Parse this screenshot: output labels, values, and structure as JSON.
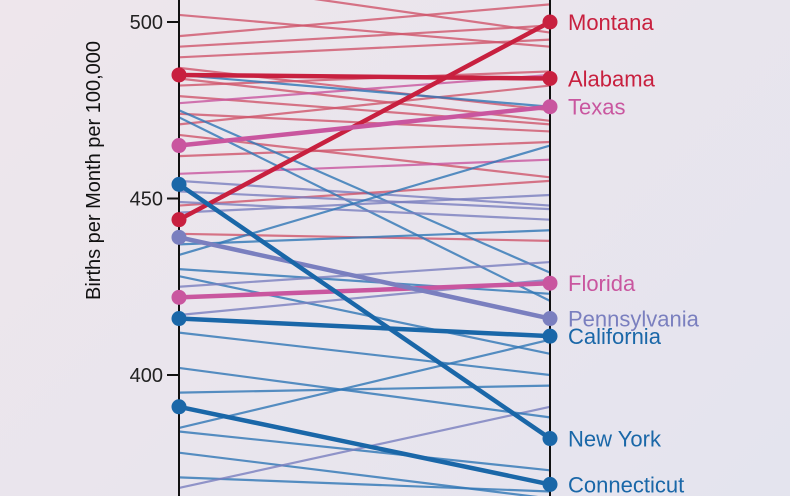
{
  "chart_data": {
    "type": "line",
    "subtype": "slope",
    "ylabel": "Births per Month per 100,000",
    "yticks": [
      400,
      450,
      500
    ],
    "ylim": [
      365,
      520
    ],
    "grid": false,
    "highlighted": [
      {
        "name": "Montana",
        "start": 444,
        "end": 500,
        "color": "#c8203f"
      },
      {
        "name": "Alabama",
        "start": 485,
        "end": 484,
        "color": "#c8203f"
      },
      {
        "name": "Texas",
        "start": 465,
        "end": 476,
        "color": "#c9569f"
      },
      {
        "name": "Florida",
        "start": 422,
        "end": 426,
        "color": "#c9569f"
      },
      {
        "name": "Pennsylvania",
        "start": 439,
        "end": 416,
        "color": "#7a7fbf"
      },
      {
        "name": "California",
        "start": 416,
        "end": 411,
        "color": "#1a67a8"
      },
      {
        "name": "New York",
        "start": 454,
        "end": 382,
        "color": "#1a67a8"
      },
      {
        "name": "Connecticut",
        "start": 391,
        "end": 369,
        "color": "#1a67a8"
      }
    ],
    "background_series": [
      {
        "start": 512,
        "end": 497,
        "color": "#d0566c"
      },
      {
        "start": 502,
        "end": 493,
        "color": "#d0566c"
      },
      {
        "start": 496,
        "end": 505,
        "color": "#d0566c"
      },
      {
        "start": 493,
        "end": 499,
        "color": "#d0566c"
      },
      {
        "start": 490,
        "end": 495,
        "color": "#d0566c"
      },
      {
        "start": 487,
        "end": 475,
        "color": "#d0566c"
      },
      {
        "start": 484,
        "end": 472,
        "color": "#d0566c"
      },
      {
        "start": 482,
        "end": 486,
        "color": "#d0566c"
      },
      {
        "start": 479,
        "end": 471,
        "color": "#d0566c"
      },
      {
        "start": 477,
        "end": 485,
        "color": "#c9569f"
      },
      {
        "start": 474,
        "end": 469,
        "color": "#d0566c"
      },
      {
        "start": 471,
        "end": 482,
        "color": "#d0566c"
      },
      {
        "start": 468,
        "end": 456,
        "color": "#d0566c"
      },
      {
        "start": 462,
        "end": 466,
        "color": "#d0566c"
      },
      {
        "start": 457,
        "end": 461,
        "color": "#c9569f"
      },
      {
        "start": 455,
        "end": 448,
        "color": "#7a7fbf"
      },
      {
        "start": 448,
        "end": 455,
        "color": "#d0566c"
      },
      {
        "start": 440,
        "end": 438,
        "color": "#d0566c"
      },
      {
        "start": 485,
        "end": 476,
        "color": "#2f76b6"
      },
      {
        "start": 475,
        "end": 429,
        "color": "#2f76b6"
      },
      {
        "start": 473,
        "end": 421,
        "color": "#2f76b6"
      },
      {
        "start": 452,
        "end": 447,
        "color": "#7a7fbf"
      },
      {
        "start": 449,
        "end": 444,
        "color": "#7a7fbf"
      },
      {
        "start": 446,
        "end": 451,
        "color": "#7a7fbf"
      },
      {
        "start": 437,
        "end": 441,
        "color": "#2f76b6"
      },
      {
        "start": 434,
        "end": 465,
        "color": "#2f76b6"
      },
      {
        "start": 430,
        "end": 423,
        "color": "#2f76b6"
      },
      {
        "start": 428,
        "end": 406,
        "color": "#2f76b6"
      },
      {
        "start": 425,
        "end": 432,
        "color": "#7a7fbf"
      },
      {
        "start": 417,
        "end": 427,
        "color": "#7a7fbf"
      },
      {
        "start": 412,
        "end": 400,
        "color": "#2f76b6"
      },
      {
        "start": 395,
        "end": 397,
        "color": "#2f76b6"
      },
      {
        "start": 385,
        "end": 410,
        "color": "#2f76b6"
      },
      {
        "start": 384,
        "end": 373,
        "color": "#2f76b6"
      },
      {
        "start": 378,
        "end": 365,
        "color": "#2f76b6"
      },
      {
        "start": 371,
        "end": 367,
        "color": "#2f76b6"
      },
      {
        "start": 368,
        "end": 391,
        "color": "#7a7fbf"
      },
      {
        "start": 402,
        "end": 388,
        "color": "#2f76b6"
      }
    ]
  }
}
